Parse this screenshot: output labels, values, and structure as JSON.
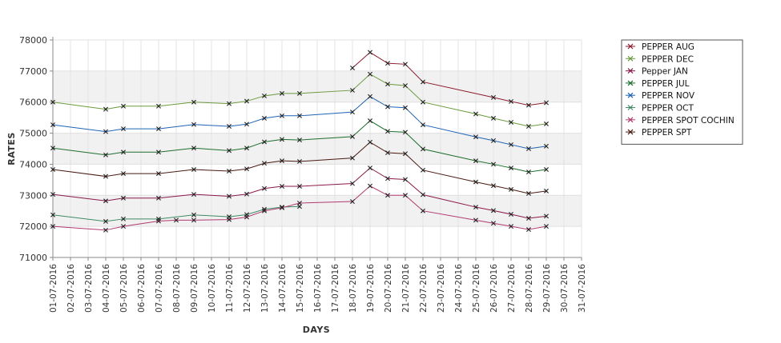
{
  "chart_data": {
    "type": "line",
    "xlabel": "DAYS",
    "ylabel": "RATES",
    "ylim": [
      71000,
      78000
    ],
    "yticks": [
      71000,
      72000,
      73000,
      74000,
      75000,
      76000,
      77000,
      78000
    ],
    "xticks": [
      "01-07-2016",
      "02-07-2016",
      "03-07-2016",
      "04-07-2016",
      "05-07-2016",
      "06-07-2016",
      "07-07-2016",
      "08-07-2016",
      "09-07-2016",
      "10-07-2016",
      "11-07-2016",
      "12-07-2016",
      "13-07-2016",
      "14-07-2016",
      "15-07-2016",
      "16-07-2016",
      "17-07-2016",
      "18-07-2016",
      "19-07-2016",
      "20-07-2016",
      "21-07-2016",
      "22-07-2016",
      "23-07-2016",
      "24-07-2016",
      "25-07-2016",
      "26-07-2016",
      "27-07-2016",
      "28-07-2016",
      "29-07-2016",
      "30-07-2016",
      "31-07-2016"
    ],
    "grid": true,
    "legend_position": "right",
    "series": [
      {
        "name": "PEPPER AUG",
        "color": "#8b1a2b",
        "points": [
          [
            "18-07-2016",
            77100
          ],
          [
            "19-07-2016",
            77600
          ],
          [
            "20-07-2016",
            77250
          ],
          [
            "21-07-2016",
            77220
          ],
          [
            "22-07-2016",
            76650
          ],
          [
            "26-07-2016",
            76150
          ],
          [
            "27-07-2016",
            76020
          ],
          [
            "28-07-2016",
            75900
          ],
          [
            "29-07-2016",
            75980
          ]
        ]
      },
      {
        "name": "PEPPER DEC",
        "color": "#6a9a3c",
        "points": [
          [
            "01-07-2016",
            76000
          ],
          [
            "04-07-2016",
            75770
          ],
          [
            "05-07-2016",
            75870
          ],
          [
            "07-07-2016",
            75870
          ],
          [
            "09-07-2016",
            76000
          ],
          [
            "11-07-2016",
            75950
          ],
          [
            "12-07-2016",
            76030
          ],
          [
            "13-07-2016",
            76200
          ],
          [
            "14-07-2016",
            76280
          ],
          [
            "15-07-2016",
            76280
          ],
          [
            "18-07-2016",
            76380
          ],
          [
            "19-07-2016",
            76900
          ],
          [
            "20-07-2016",
            76580
          ],
          [
            "21-07-2016",
            76530
          ],
          [
            "22-07-2016",
            76000
          ],
          [
            "25-07-2016",
            75620
          ],
          [
            "26-07-2016",
            75480
          ],
          [
            "27-07-2016",
            75350
          ],
          [
            "28-07-2016",
            75220
          ],
          [
            "29-07-2016",
            75300
          ]
        ]
      },
      {
        "name": "Pepper JAN",
        "color": "#8b1a4a",
        "points": [
          [
            "01-07-2016",
            73030
          ],
          [
            "04-07-2016",
            72820
          ],
          [
            "05-07-2016",
            72910
          ],
          [
            "07-07-2016",
            72910
          ],
          [
            "09-07-2016",
            73030
          ],
          [
            "11-07-2016",
            72970
          ],
          [
            "12-07-2016",
            73040
          ],
          [
            "13-07-2016",
            73220
          ],
          [
            "14-07-2016",
            73290
          ],
          [
            "15-07-2016",
            73290
          ],
          [
            "18-07-2016",
            73380
          ],
          [
            "19-07-2016",
            73880
          ],
          [
            "20-07-2016",
            73540
          ],
          [
            "21-07-2016",
            73510
          ],
          [
            "22-07-2016",
            73020
          ],
          [
            "25-07-2016",
            72620
          ],
          [
            "26-07-2016",
            72510
          ],
          [
            "27-07-2016",
            72390
          ],
          [
            "28-07-2016",
            72260
          ],
          [
            "29-07-2016",
            72330
          ]
        ]
      },
      {
        "name": "PEPPER JUL",
        "color": "#1e6e2c",
        "points": [
          [
            "01-07-2016",
            74520
          ],
          [
            "04-07-2016",
            74300
          ],
          [
            "05-07-2016",
            74390
          ],
          [
            "07-07-2016",
            74390
          ],
          [
            "09-07-2016",
            74520
          ],
          [
            "11-07-2016",
            74440
          ],
          [
            "12-07-2016",
            74520
          ],
          [
            "13-07-2016",
            74720
          ],
          [
            "14-07-2016",
            74800
          ],
          [
            "15-07-2016",
            74780
          ],
          [
            "18-07-2016",
            74890
          ],
          [
            "19-07-2016",
            75400
          ],
          [
            "20-07-2016",
            75060
          ],
          [
            "21-07-2016",
            75030
          ],
          [
            "22-07-2016",
            74490
          ],
          [
            "25-07-2016",
            74110
          ],
          [
            "26-07-2016",
            74000
          ],
          [
            "27-07-2016",
            73880
          ],
          [
            "28-07-2016",
            73750
          ],
          [
            "29-07-2016",
            73830
          ]
        ]
      },
      {
        "name": "PEPPER NOV",
        "color": "#1f63b5",
        "points": [
          [
            "01-07-2016",
            75270
          ],
          [
            "04-07-2016",
            75050
          ],
          [
            "05-07-2016",
            75140
          ],
          [
            "07-07-2016",
            75140
          ],
          [
            "09-07-2016",
            75280
          ],
          [
            "11-07-2016",
            75220
          ],
          [
            "12-07-2016",
            75290
          ],
          [
            "13-07-2016",
            75480
          ],
          [
            "14-07-2016",
            75560
          ],
          [
            "15-07-2016",
            75560
          ],
          [
            "18-07-2016",
            75680
          ],
          [
            "19-07-2016",
            76180
          ],
          [
            "20-07-2016",
            75850
          ],
          [
            "21-07-2016",
            75820
          ],
          [
            "22-07-2016",
            75270
          ],
          [
            "25-07-2016",
            74880
          ],
          [
            "26-07-2016",
            74760
          ],
          [
            "27-07-2016",
            74630
          ],
          [
            "28-07-2016",
            74500
          ],
          [
            "29-07-2016",
            74580
          ]
        ]
      },
      {
        "name": "PEPPER OCT",
        "color": "#3e8a66",
        "points": [
          [
            "01-07-2016",
            72370
          ],
          [
            "04-07-2016",
            72160
          ],
          [
            "05-07-2016",
            72240
          ],
          [
            "07-07-2016",
            72240
          ],
          [
            "09-07-2016",
            72370
          ],
          [
            "11-07-2016",
            72310
          ],
          [
            "12-07-2016",
            72380
          ],
          [
            "13-07-2016",
            72550
          ],
          [
            "14-07-2016",
            72620
          ],
          [
            "15-07-2016",
            72640
          ]
        ]
      },
      {
        "name": "PEPPER SPOT COCHIN",
        "color": "#b03a6e",
        "points": [
          [
            "01-07-2016",
            72000
          ],
          [
            "04-07-2016",
            71880
          ],
          [
            "05-07-2016",
            72000
          ],
          [
            "07-07-2016",
            72170
          ],
          [
            "08-07-2016",
            72200
          ],
          [
            "09-07-2016",
            72200
          ],
          [
            "11-07-2016",
            72220
          ],
          [
            "12-07-2016",
            72300
          ],
          [
            "13-07-2016",
            72500
          ],
          [
            "14-07-2016",
            72600
          ],
          [
            "15-07-2016",
            72750
          ],
          [
            "18-07-2016",
            72800
          ],
          [
            "19-07-2016",
            73300
          ],
          [
            "20-07-2016",
            73000
          ],
          [
            "21-07-2016",
            73000
          ],
          [
            "22-07-2016",
            72500
          ],
          [
            "25-07-2016",
            72200
          ],
          [
            "26-07-2016",
            72100
          ],
          [
            "27-07-2016",
            72000
          ],
          [
            "28-07-2016",
            71900
          ],
          [
            "29-07-2016",
            72000
          ]
        ]
      },
      {
        "name": "PEPPER SPT",
        "color": "#4a1a12",
        "points": [
          [
            "01-07-2016",
            73830
          ],
          [
            "04-07-2016",
            73610
          ],
          [
            "05-07-2016",
            73700
          ],
          [
            "07-07-2016",
            73700
          ],
          [
            "09-07-2016",
            73830
          ],
          [
            "11-07-2016",
            73780
          ],
          [
            "12-07-2016",
            73850
          ],
          [
            "13-07-2016",
            74030
          ],
          [
            "14-07-2016",
            74110
          ],
          [
            "15-07-2016",
            74090
          ],
          [
            "18-07-2016",
            74200
          ],
          [
            "19-07-2016",
            74710
          ],
          [
            "20-07-2016",
            74370
          ],
          [
            "21-07-2016",
            74340
          ],
          [
            "22-07-2016",
            73810
          ],
          [
            "25-07-2016",
            73430
          ],
          [
            "26-07-2016",
            73310
          ],
          [
            "27-07-2016",
            73190
          ],
          [
            "28-07-2016",
            73060
          ],
          [
            "29-07-2016",
            73140
          ]
        ]
      }
    ]
  }
}
